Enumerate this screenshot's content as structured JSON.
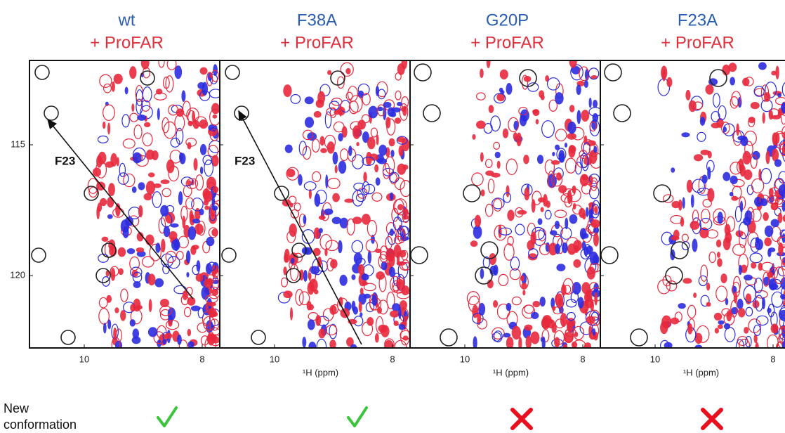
{
  "y_axis": {
    "ticks": [
      "115",
      "120"
    ]
  },
  "panels": [
    {
      "mutant": "wt",
      "ligand": "+ ProFAR",
      "x_ticks": [
        "10",
        "8"
      ],
      "annotation": "F23",
      "new_conformation": true
    },
    {
      "mutant": "F38A",
      "ligand": "+ ProFAR",
      "x_ticks": [
        "10",
        "8"
      ],
      "x_label": "¹H (ppm)",
      "annotation": "F23",
      "new_conformation": true
    },
    {
      "mutant": "G20P",
      "ligand": "+ ProFAR",
      "x_ticks": [
        "10",
        "8"
      ],
      "x_label": "¹H (ppm)",
      "new_conformation": false
    },
    {
      "mutant": "F23A",
      "ligand": "+ ProFAR",
      "x_ticks": [
        "10",
        "8"
      ],
      "x_label": "¹H (ppm)",
      "new_conformation": false
    }
  ],
  "row_label": [
    "New",
    "conformation"
  ]
}
